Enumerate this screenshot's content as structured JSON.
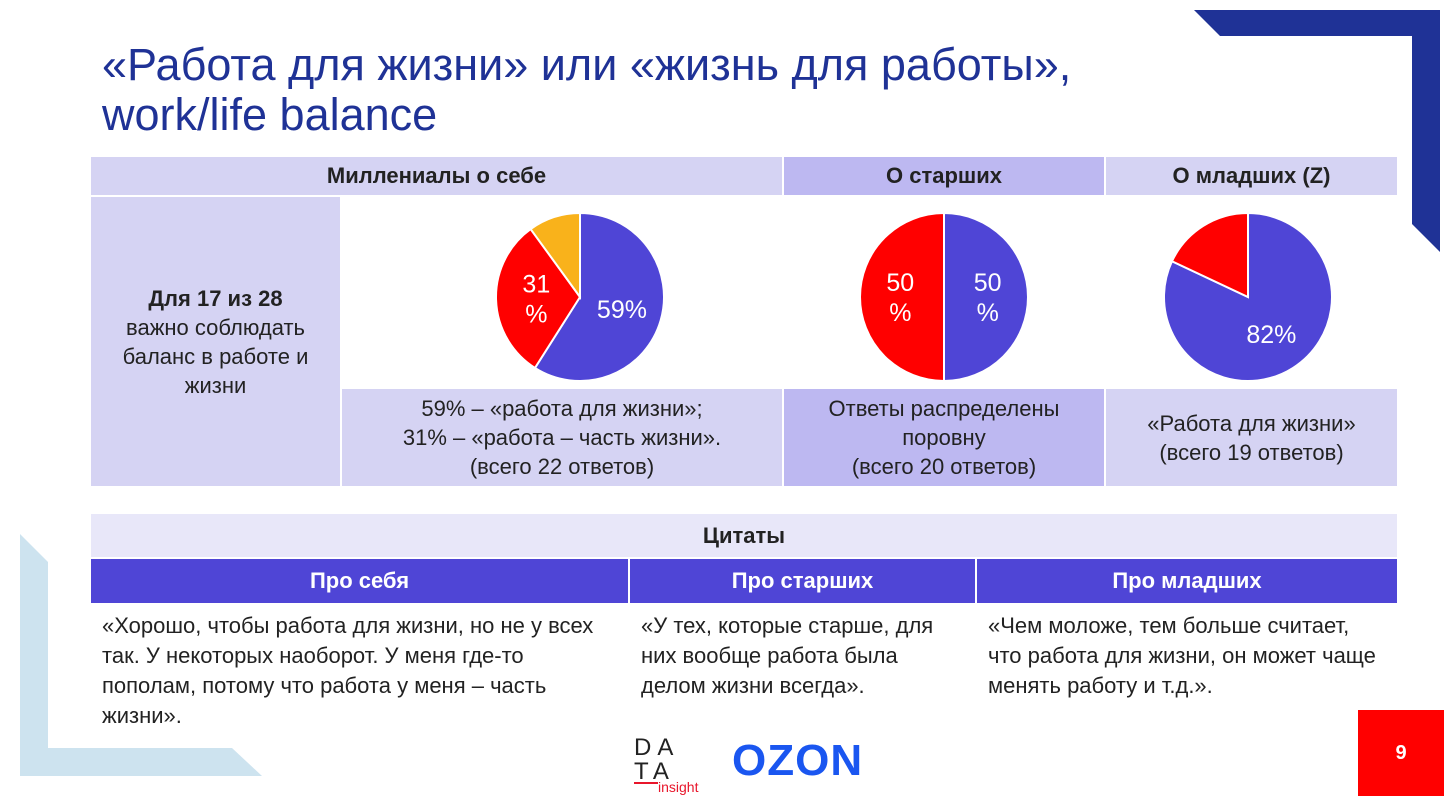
{
  "slide": {
    "title_line1": "«Работа для жизни» или «жизнь для работы»,",
    "title_line2": "work/life balance",
    "page_number": "9"
  },
  "colors": {
    "title": "#1f3296",
    "blue_series": "#4f45d6",
    "red_series": "#ff0000",
    "orange_series": "#f9b21b",
    "header_light": "#d5d3f3",
    "header_mid": "#bdb8f1",
    "quote_header": "#4f45d6",
    "badge": "#ff0000"
  },
  "table": {
    "headers": [
      "Миллениалы о себе",
      "О старших",
      "О младших (Z)"
    ],
    "left_bold": "Для 17 из 28",
    "left_text": "важно соблюдать баланс в работе и жизни",
    "notes": {
      "self_line1": "59% – «работа для жизни»;",
      "self_line2": "31% – «работа – часть жизни».",
      "self_line3": "(всего 22 ответов)",
      "older_line1": "Ответы распределены",
      "older_line2": "поровну",
      "older_line3": "(всего 20 ответов)",
      "younger_line1": "«Работа для жизни»",
      "younger_line2": "(всего 19 ответов)"
    }
  },
  "chart_data": [
    {
      "type": "pie",
      "title": "",
      "slices": [
        {
          "value": 59,
          "color": "#4f45d6",
          "label_lines": [
            "59%"
          ]
        },
        {
          "value": 31,
          "color": "#ff0000",
          "label_lines": [
            "31",
            "%"
          ]
        },
        {
          "value": 10,
          "color": "#f9b21b",
          "label_lines": []
        }
      ]
    },
    {
      "type": "pie",
      "title": "",
      "slices": [
        {
          "value": 50,
          "color": "#4f45d6",
          "label_lines": [
            "50",
            "%"
          ]
        },
        {
          "value": 50,
          "color": "#ff0000",
          "label_lines": [
            "50",
            "%"
          ]
        }
      ]
    },
    {
      "type": "pie",
      "title": "",
      "slices": [
        {
          "value": 82,
          "color": "#4f45d6",
          "label_lines": [
            "82%"
          ]
        },
        {
          "value": 18,
          "color": "#ff0000",
          "label_lines": []
        }
      ]
    }
  ],
  "quotes": {
    "title": "Цитаты",
    "headers": [
      "Про себя",
      "Про старших",
      "Про младших"
    ],
    "self_text": "«Хорошо, чтобы работа для жизни, но не у всех так. У некоторых наоборот. У меня где-то пополам, потому что работа у меня – часть жизни».",
    "older_text": "«У тех, которые старше, для них вообще работа была делом жизни всегда».",
    "younger_text": "«Чем моложе, тем больше считает, что работа для жизни, он может чаще менять работу и т.д.»."
  },
  "logos": {
    "data_line1": "DA",
    "data_line2": "TA",
    "data_line3": "insight",
    "ozon": "OZON"
  }
}
